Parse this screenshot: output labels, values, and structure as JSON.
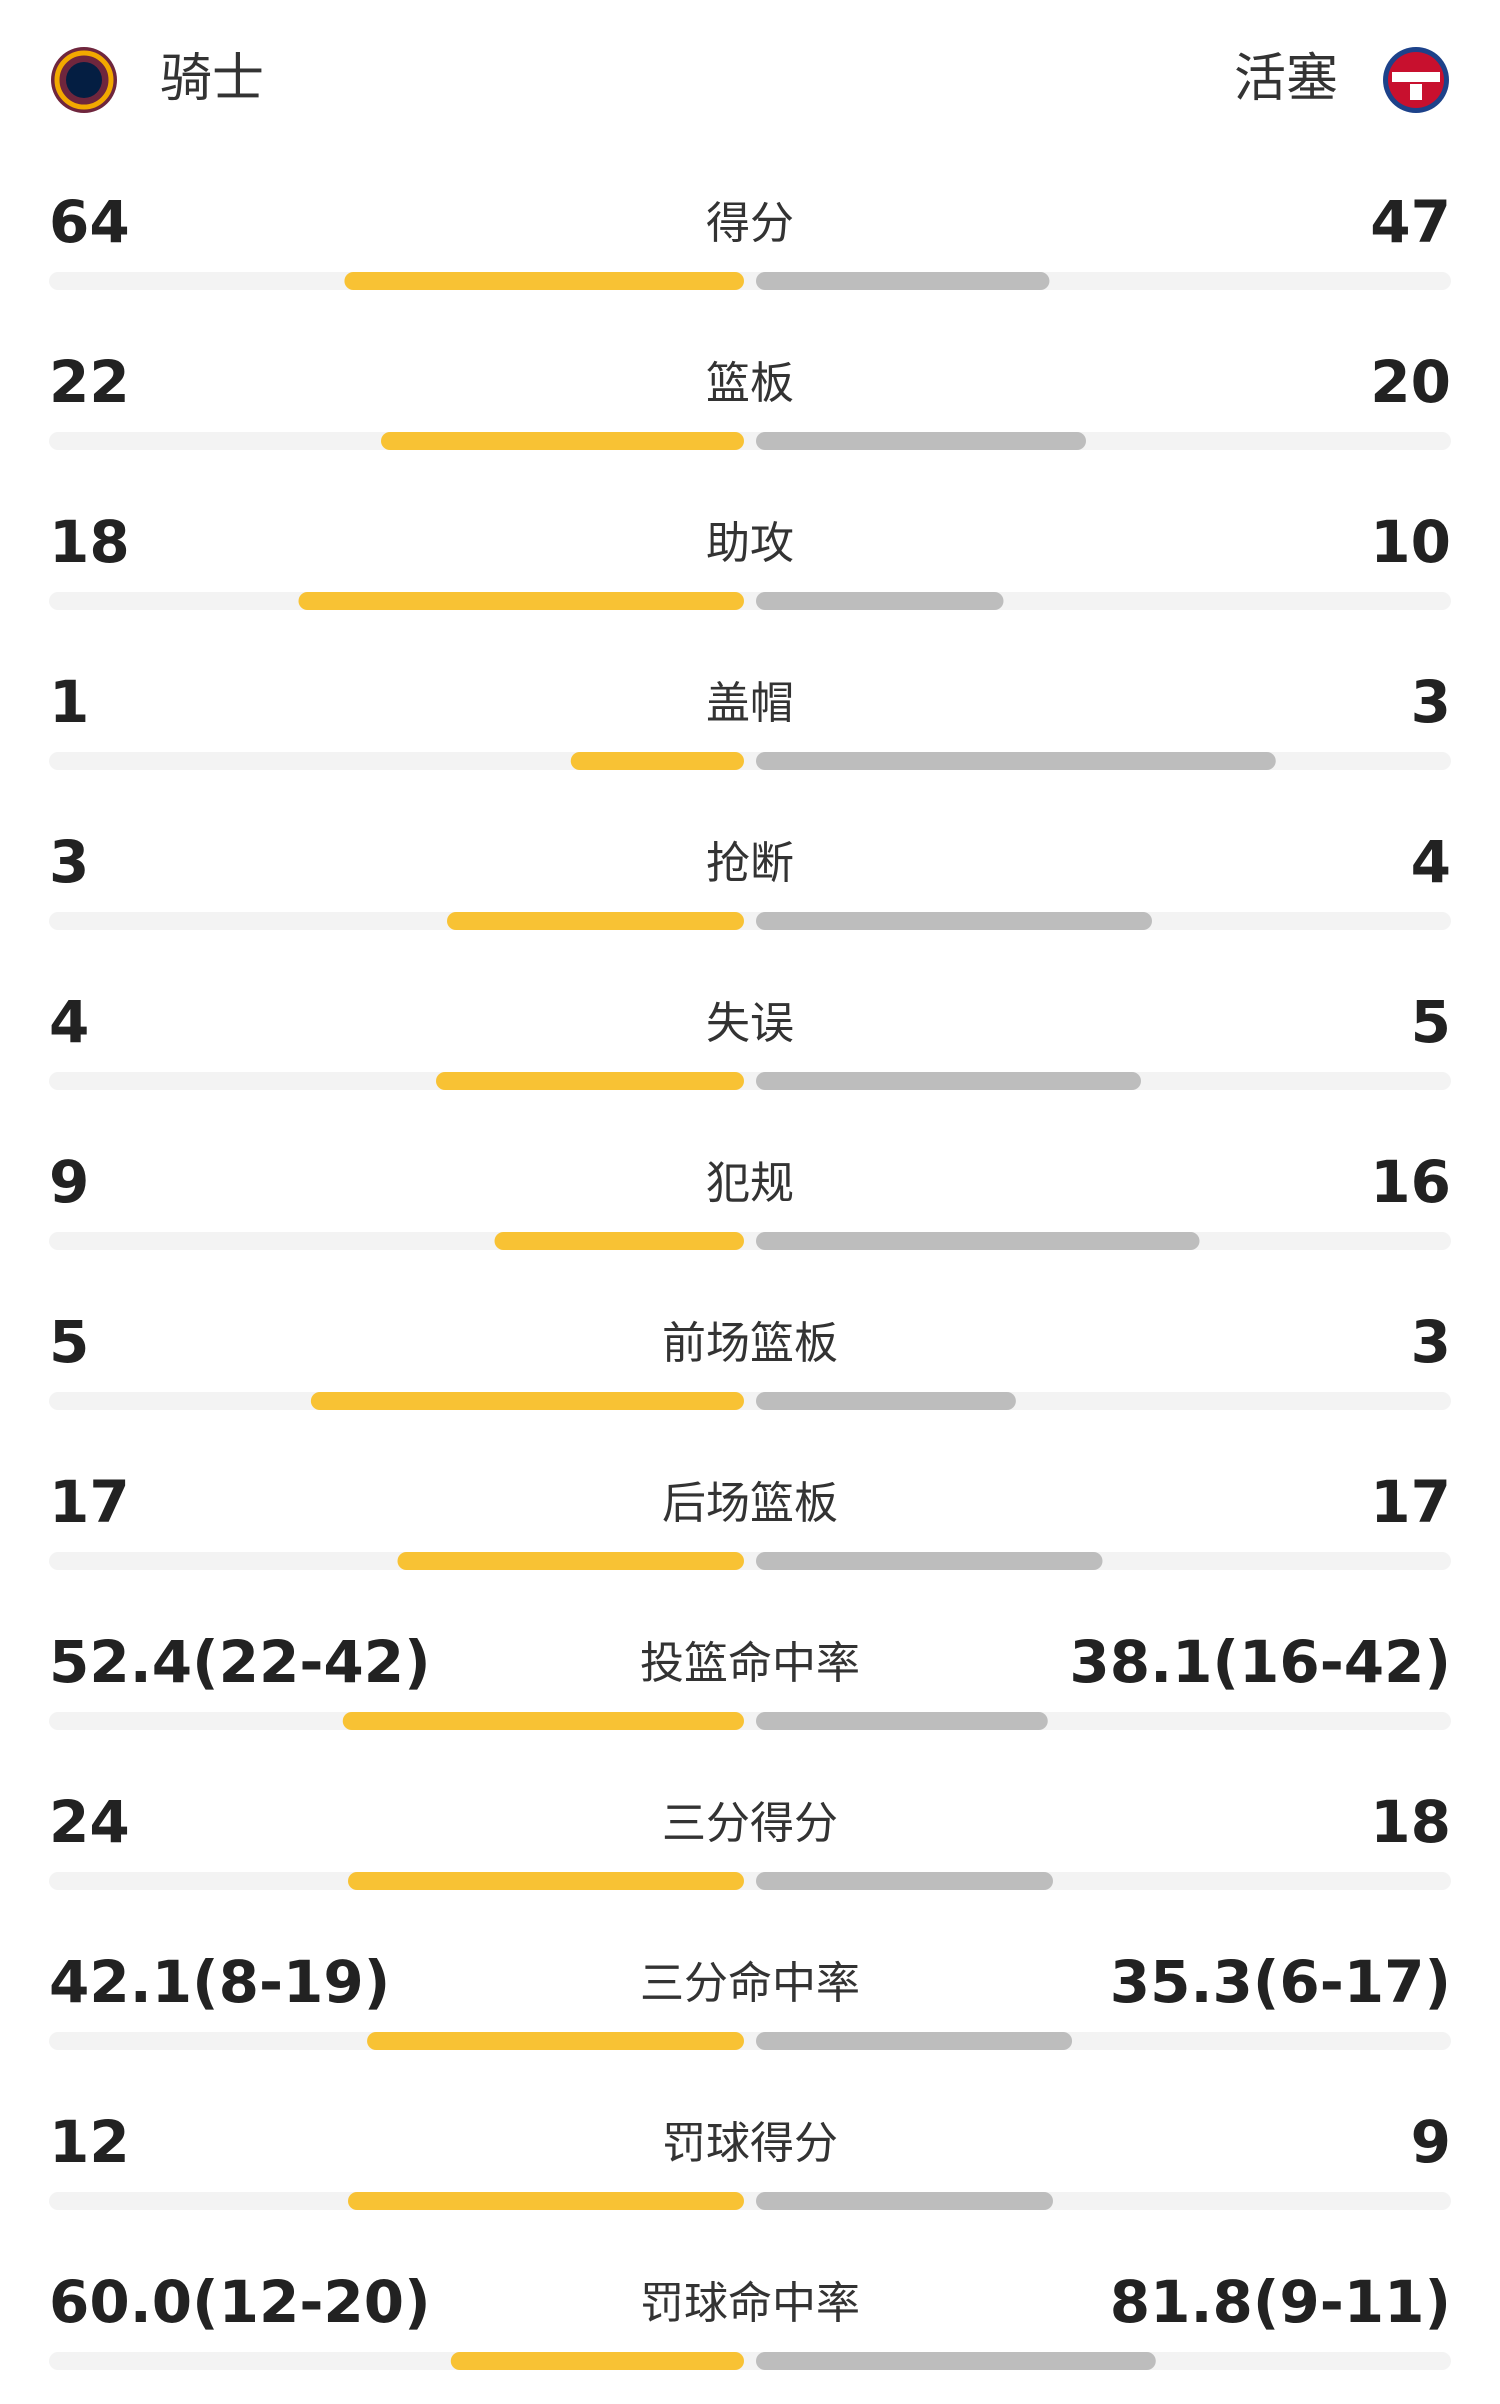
{
  "header": {
    "home": "骑士",
    "away": "活塞"
  },
  "stats": [
    {
      "label": "得分",
      "home": 64,
      "away": 47
    },
    {
      "label": "篮板",
      "home": 22,
      "away": 20
    },
    {
      "label": "助攻",
      "home": 18,
      "away": 10
    },
    {
      "label": "盖帽",
      "home": 1,
      "away": 3
    },
    {
      "label": "抢断",
      "home": 3,
      "away": 4
    },
    {
      "label": "失误",
      "home": 4,
      "away": 5
    },
    {
      "label": "犯规",
      "home": 9,
      "away": 16
    },
    {
      "label": "前场篮板",
      "home": 5,
      "away": 3
    },
    {
      "label": "后场篮板",
      "home": 17,
      "away": 17
    },
    {
      "label": "投篮命中率",
      "home": {
        "value": 52.4,
        "label": "52.4(22-42)"
      },
      "away": {
        "value": 38.1,
        "label": "38.1(16-42)"
      }
    },
    {
      "label": "三分得分",
      "home": 24,
      "away": 18
    },
    {
      "label": "三分命中率",
      "home": {
        "value": 42.1,
        "label": "42.1(8-19)"
      },
      "away": {
        "value": 35.3,
        "label": "35.3(6-17)"
      }
    },
    {
      "label": "罚球得分",
      "home": 12,
      "away": 9
    },
    {
      "label": "罚球命中率",
      "home": {
        "value": 60.0,
        "label": "60.0(12-20)"
      },
      "away": {
        "value": 81.8,
        "label": "81.8(9-11)"
      }
    }
  ]
}
